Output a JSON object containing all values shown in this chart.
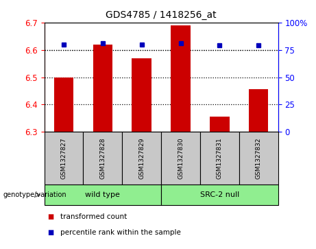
{
  "title": "GDS4785 / 1418256_at",
  "samples": [
    "GSM1327827",
    "GSM1327828",
    "GSM1327829",
    "GSM1327830",
    "GSM1327831",
    "GSM1327832"
  ],
  "red_values": [
    6.5,
    6.62,
    6.57,
    6.69,
    6.355,
    6.455
  ],
  "blue_percentiles": [
    80,
    81,
    80,
    81,
    79,
    79
  ],
  "ylim_left": [
    6.3,
    6.7
  ],
  "ylim_right": [
    0,
    100
  ],
  "yticks_left": [
    6.3,
    6.4,
    6.5,
    6.6,
    6.7
  ],
  "yticks_right": [
    0,
    25,
    50,
    75,
    100
  ],
  "ytick_labels_right": [
    "0",
    "25",
    "50",
    "75",
    "100%"
  ],
  "groups": [
    {
      "label": "wild type",
      "indices": [
        0,
        1,
        2
      ],
      "color": "#90EE90"
    },
    {
      "label": "SRC-2 null",
      "indices": [
        3,
        4,
        5
      ],
      "color": "#90EE90"
    }
  ],
  "bar_color": "#CC0000",
  "dot_color": "#0000BB",
  "bar_bottom": 6.3,
  "bar_width": 0.5,
  "genotype_label": "genotype/variation",
  "legend_items": [
    {
      "color": "#CC0000",
      "label": "transformed count"
    },
    {
      "color": "#0000BB",
      "label": "percentile rank within the sample"
    }
  ],
  "sample_box_color": "#C8C8C8",
  "fig_width": 4.61,
  "fig_height": 3.63
}
